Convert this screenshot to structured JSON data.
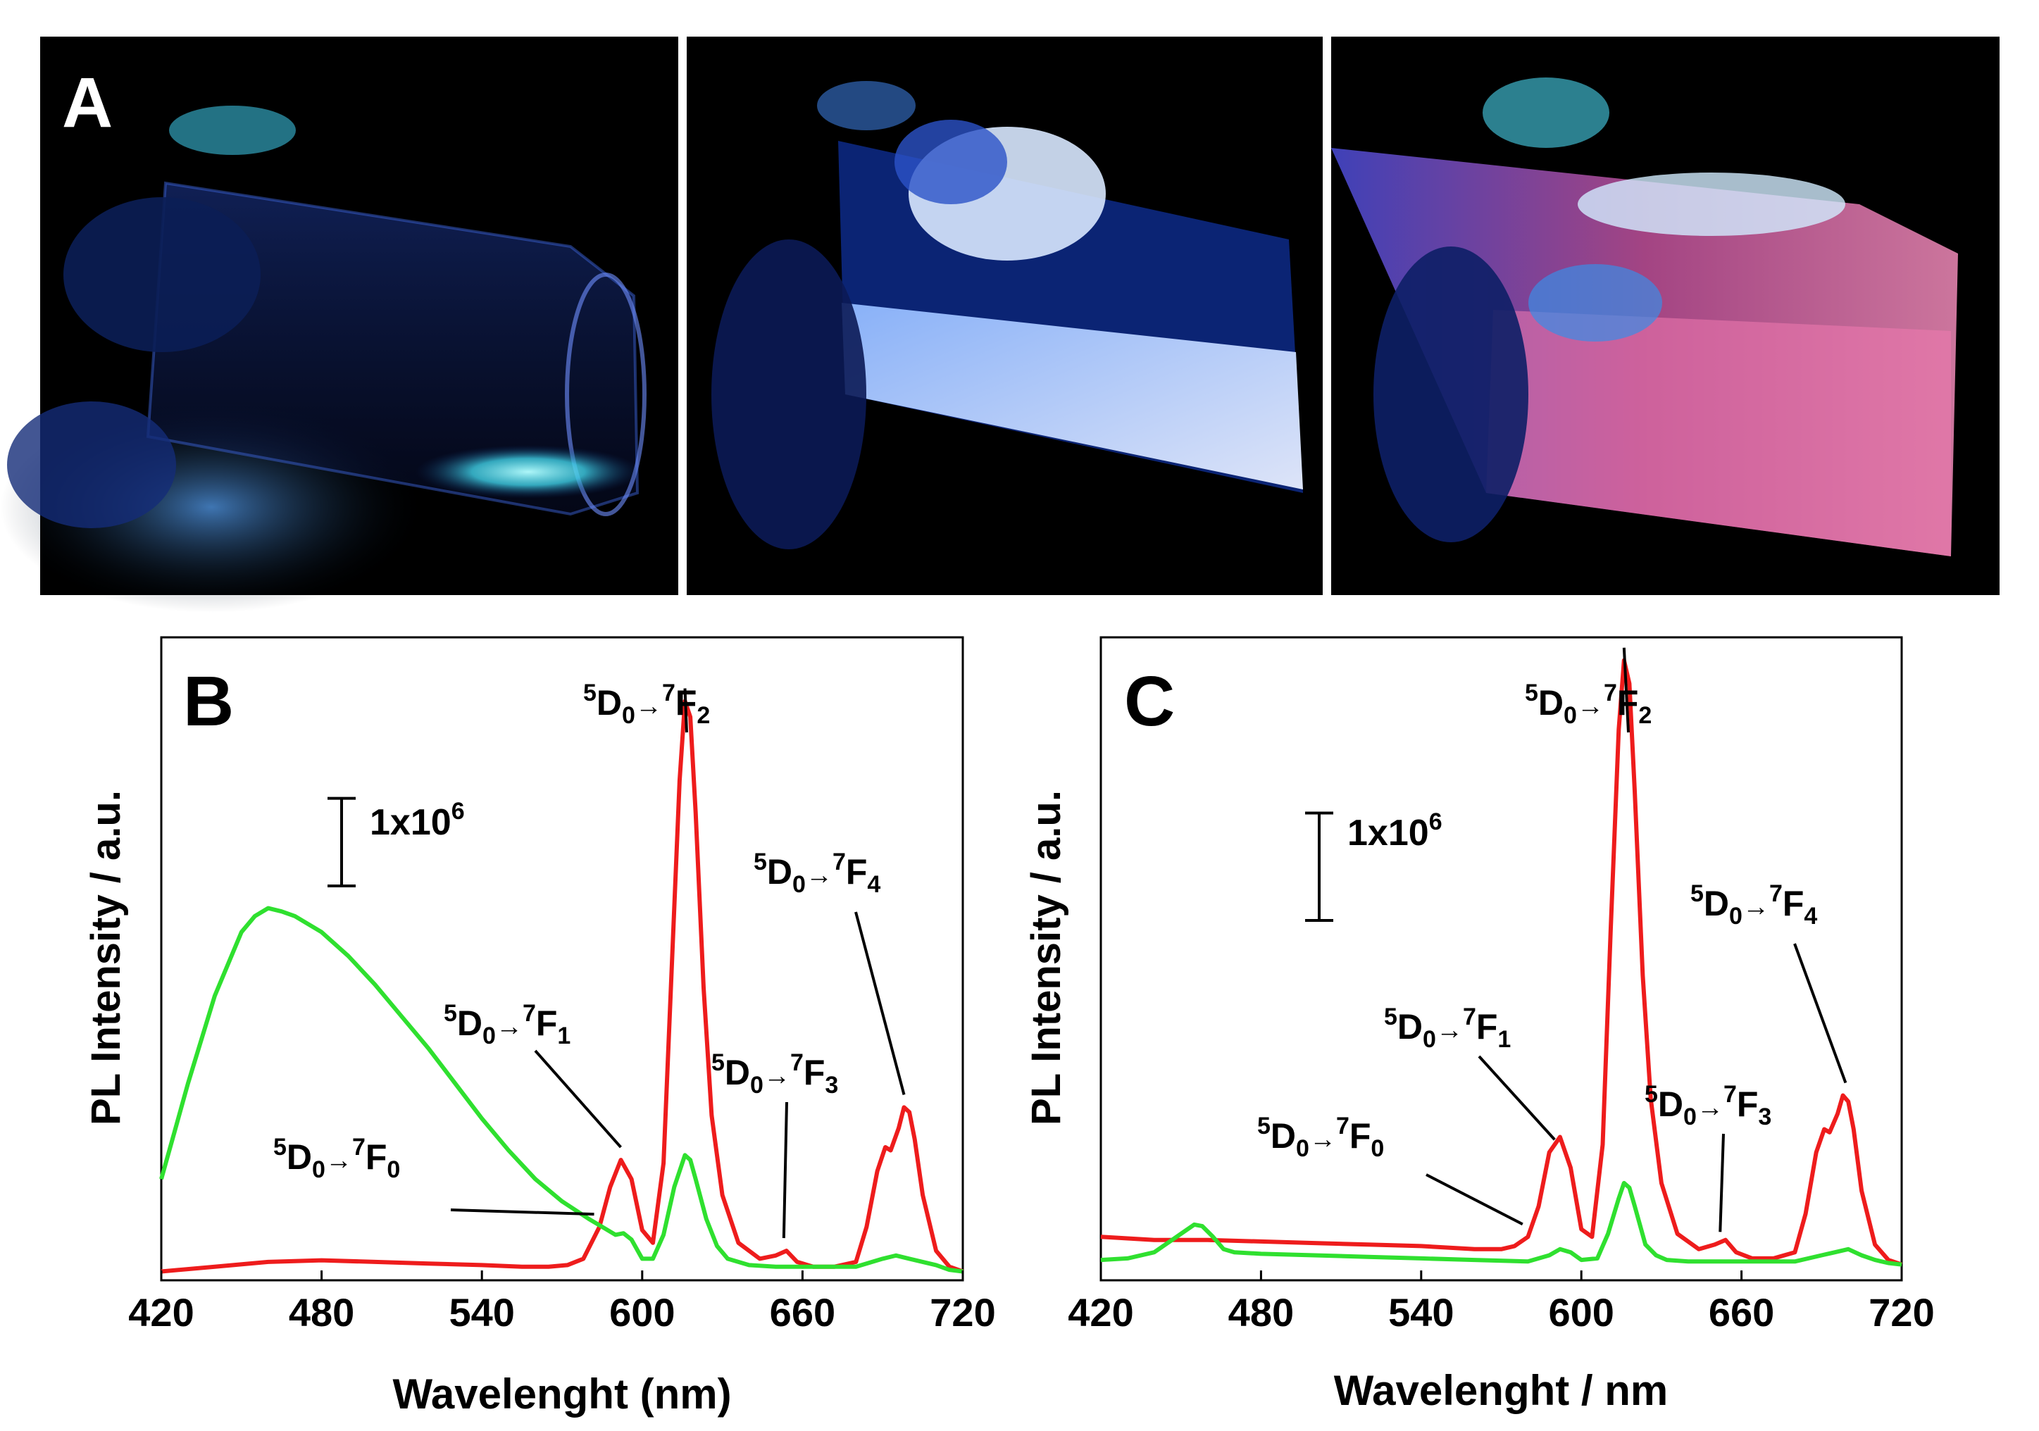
{
  "figure": {
    "panel_a": {
      "letter": "A",
      "photo_descriptions": [
        "vial 1 (cyan glow)",
        "vial 2 (bluish-white glow)",
        "vial 3 (pink glow)"
      ]
    }
  },
  "chart_data": [
    {
      "type": "line",
      "panel": "B",
      "xlabel": "Wavelenght (nm)",
      "ylabel": "PL Intensity / a.u.",
      "xlim": [
        420,
        720
      ],
      "xticks": [
        420,
        480,
        540,
        600,
        660,
        720
      ],
      "ylim": [
        0,
        4.0
      ],
      "scale_bar": {
        "label_base": "1x10",
        "label_exp": "6",
        "value": 1000000,
        "units": 1.0
      },
      "series": [
        {
          "name": "red",
          "color": "#ee1c1c",
          "x": [
            420,
            440,
            460,
            480,
            500,
            520,
            540,
            555,
            565,
            572,
            578,
            584,
            588,
            592,
            596,
            600,
            604,
            608,
            611,
            614,
            616,
            618,
            620,
            623,
            626,
            630,
            636,
            644,
            650,
            654,
            658,
            664,
            672,
            680,
            684,
            688,
            691,
            693,
            696,
            698,
            700,
            702,
            705,
            710,
            715,
            720
          ],
          "y": [
            0.02,
            0.05,
            0.08,
            0.09,
            0.08,
            0.07,
            0.06,
            0.05,
            0.05,
            0.06,
            0.1,
            0.3,
            0.55,
            0.72,
            0.6,
            0.28,
            0.2,
            0.7,
            1.9,
            3.1,
            3.6,
            3.5,
            2.9,
            1.8,
            1.0,
            0.5,
            0.2,
            0.1,
            0.12,
            0.15,
            0.08,
            0.05,
            0.05,
            0.08,
            0.3,
            0.65,
            0.8,
            0.78,
            0.92,
            1.05,
            1.02,
            0.85,
            0.5,
            0.15,
            0.05,
            0.02
          ]
        },
        {
          "name": "green",
          "color": "#2fe02f",
          "x": [
            420,
            425,
            430,
            440,
            450,
            455,
            460,
            465,
            470,
            480,
            490,
            500,
            510,
            520,
            530,
            540,
            550,
            560,
            570,
            580,
            585,
            590,
            593,
            596,
            600,
            604,
            608,
            612,
            616,
            618,
            620,
            624,
            628,
            632,
            640,
            650,
            660,
            670,
            680,
            690,
            695,
            700,
            705,
            710,
            715,
            720
          ],
          "y": [
            0.6,
            0.9,
            1.2,
            1.75,
            2.15,
            2.25,
            2.3,
            2.28,
            2.25,
            2.15,
            2.0,
            1.82,
            1.62,
            1.42,
            1.2,
            0.98,
            0.78,
            0.6,
            0.46,
            0.35,
            0.3,
            0.25,
            0.26,
            0.22,
            0.1,
            0.1,
            0.25,
            0.55,
            0.75,
            0.72,
            0.6,
            0.35,
            0.18,
            0.1,
            0.06,
            0.05,
            0.05,
            0.05,
            0.05,
            0.1,
            0.12,
            0.1,
            0.08,
            0.06,
            0.03,
            0.02
          ]
        }
      ],
      "annotations": [
        {
          "text": "5D0→7F0",
          "sup1": "5",
          "base1": "D",
          "sub1": "0",
          "sup2": "7",
          "base2": "F",
          "sub2": "0",
          "arrow_x": 582
        },
        {
          "text": "5D0→7F1",
          "sup1": "5",
          "base1": "D",
          "sub1": "0",
          "sup2": "7",
          "base2": "F",
          "sub2": "1",
          "arrow_x": 592
        },
        {
          "text": "5D0→7F2",
          "sup1": "5",
          "base1": "D",
          "sub1": "0",
          "sup2": "7",
          "base2": "F",
          "sub2": "2",
          "arrow_x": 616
        },
        {
          "text": "5D0→7F3",
          "sup1": "5",
          "base1": "D",
          "sub1": "0",
          "sup2": "7",
          "base2": "F",
          "sub2": "3",
          "arrow_x": 653
        },
        {
          "text": "5D0→7F4",
          "sup1": "5",
          "base1": "D",
          "sub1": "0",
          "sup2": "7",
          "base2": "F",
          "sub2": "4",
          "arrow_x": 698
        }
      ]
    },
    {
      "type": "line",
      "panel": "C",
      "xlabel": "Wavelenght / nm",
      "ylabel": "PL Intensity / a.u.",
      "xlim": [
        420,
        720
      ],
      "xticks": [
        420,
        480,
        540,
        600,
        660,
        720
      ],
      "ylim": [
        0,
        4.1
      ],
      "scale_bar": {
        "label_base": "1x10",
        "label_exp": "6",
        "value": 1000000,
        "units": 1.27
      },
      "series": [
        {
          "name": "red",
          "color": "#ee1c1c",
          "x": [
            420,
            440,
            460,
            480,
            500,
            520,
            540,
            560,
            570,
            575,
            580,
            584,
            588,
            592,
            596,
            600,
            604,
            608,
            611,
            614,
            616,
            618,
            620,
            623,
            626,
            630,
            636,
            644,
            650,
            654,
            658,
            664,
            672,
            680,
            684,
            688,
            691,
            693,
            696,
            698,
            700,
            702,
            705,
            710,
            715,
            720
          ],
          "y": [
            0.2,
            0.18,
            0.18,
            0.17,
            0.16,
            0.15,
            0.14,
            0.12,
            0.12,
            0.14,
            0.2,
            0.4,
            0.75,
            0.85,
            0.65,
            0.25,
            0.2,
            0.8,
            2.2,
            3.5,
            3.95,
            3.8,
            3.1,
            1.9,
            1.1,
            0.55,
            0.22,
            0.12,
            0.15,
            0.18,
            0.1,
            0.06,
            0.06,
            0.1,
            0.35,
            0.75,
            0.9,
            0.88,
            1.0,
            1.12,
            1.08,
            0.9,
            0.5,
            0.15,
            0.05,
            0.02
          ]
        },
        {
          "name": "green",
          "color": "#2fe02f",
          "x": [
            420,
            430,
            440,
            450,
            455,
            458,
            462,
            466,
            470,
            480,
            500,
            520,
            540,
            560,
            580,
            588,
            592,
            596,
            600,
            606,
            610,
            614,
            616,
            618,
            620,
            624,
            628,
            632,
            640,
            660,
            680,
            690,
            695,
            700,
            705,
            710,
            715,
            720
          ],
          "y": [
            0.05,
            0.06,
            0.1,
            0.22,
            0.28,
            0.27,
            0.2,
            0.12,
            0.1,
            0.09,
            0.08,
            0.07,
            0.06,
            0.05,
            0.04,
            0.08,
            0.12,
            0.1,
            0.05,
            0.06,
            0.22,
            0.45,
            0.55,
            0.52,
            0.4,
            0.15,
            0.08,
            0.05,
            0.04,
            0.04,
            0.04,
            0.08,
            0.1,
            0.12,
            0.08,
            0.05,
            0.03,
            0.02
          ]
        }
      ],
      "annotations": [
        {
          "text": "5D0→7F0",
          "sup1": "5",
          "base1": "D",
          "sub1": "0",
          "sup2": "7",
          "base2": "F",
          "sub2": "0",
          "arrow_x": 578
        },
        {
          "text": "5D0→7F1",
          "sup1": "5",
          "base1": "D",
          "sub1": "0",
          "sup2": "7",
          "base2": "F",
          "sub2": "1",
          "arrow_x": 590
        },
        {
          "text": "5D0→7F2",
          "sup1": "5",
          "base1": "D",
          "sub1": "0",
          "sup2": "7",
          "base2": "F",
          "sub2": "2",
          "arrow_x": 616
        },
        {
          "text": "5D0→7F3",
          "sup1": "5",
          "base1": "D",
          "sub1": "0",
          "sup2": "7",
          "base2": "F",
          "sub2": "3",
          "arrow_x": 652
        },
        {
          "text": "5D0→7F4",
          "sup1": "5",
          "base1": "D",
          "sub1": "0",
          "sup2": "7",
          "base2": "F",
          "sub2": "4",
          "arrow_x": 699
        }
      ]
    }
  ]
}
